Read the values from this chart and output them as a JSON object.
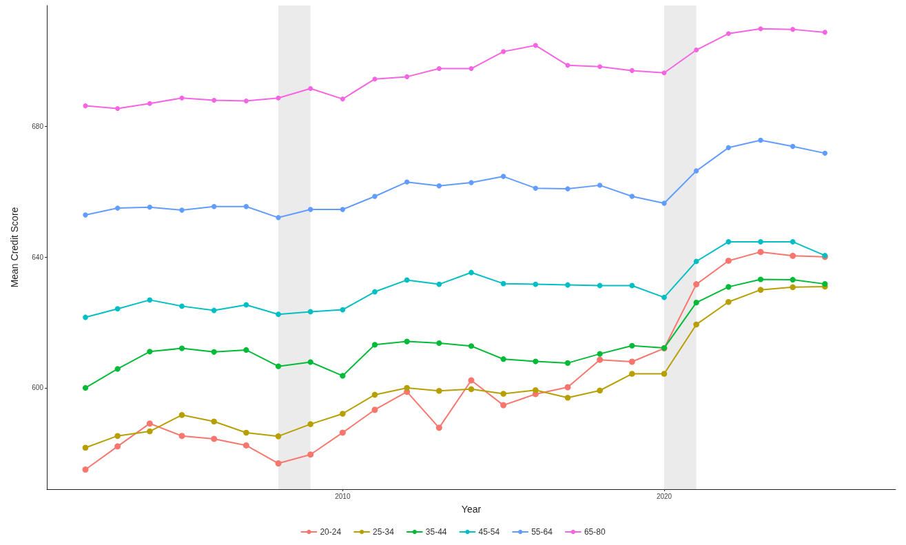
{
  "chart_data": {
    "type": "line",
    "xlabel": "Year",
    "ylabel": "Mean Credit Score",
    "x": [
      2002,
      2003,
      2004,
      2005,
      2006,
      2007,
      2008,
      2009,
      2010,
      2011,
      2012,
      2013,
      2014,
      2015,
      2016,
      2017,
      2018,
      2019,
      2020,
      2021,
      2022,
      2023,
      2024,
      2025
    ],
    "series": [
      {
        "name": "20-24",
        "color": "#f8766d",
        "values": [
          575.0,
          582.1,
          589.1,
          585.3,
          584.4,
          582.4,
          576.9,
          579.6,
          586.3,
          593.3,
          598.8,
          587.8,
          602.3,
          594.7,
          598.1,
          600.2,
          608.6,
          608.0,
          612.1,
          631.7,
          638.9,
          641.6,
          640.4,
          640.1
        ]
      },
      {
        "name": "25-34",
        "color": "#b79f00",
        "values": [
          581.7,
          585.3,
          586.7,
          591.7,
          589.7,
          586.3,
          585.2,
          588.9,
          592.1,
          597.9,
          600.0,
          599.1,
          599.6,
          598.2,
          599.3,
          597.0,
          599.2,
          604.3,
          604.3,
          619.4,
          626.3,
          630.0,
          630.8,
          631.0
        ]
      },
      {
        "name": "35-44",
        "color": "#00ba38",
        "values": [
          600.0,
          605.8,
          611.1,
          612.1,
          611.0,
          611.6,
          606.6,
          607.9,
          603.7,
          613.2,
          614.2,
          613.7,
          612.8,
          608.8,
          608.1,
          607.6,
          610.4,
          612.9,
          612.2,
          626.1,
          630.9,
          633.2,
          633.1,
          631.8
        ]
      },
      {
        "name": "45-54",
        "color": "#00bfc4",
        "values": [
          621.6,
          624.2,
          626.9,
          625.0,
          623.7,
          625.4,
          622.5,
          623.3,
          623.9,
          629.4,
          633.0,
          631.7,
          635.3,
          631.9,
          631.7,
          631.5,
          631.3,
          631.3,
          627.7,
          638.7,
          644.7,
          644.7,
          644.7,
          640.5
        ]
      },
      {
        "name": "55-64",
        "color": "#619cff",
        "values": [
          652.9,
          655.0,
          655.3,
          654.4,
          655.5,
          655.5,
          652.1,
          654.6,
          654.6,
          658.6,
          663.0,
          661.8,
          662.8,
          664.7,
          661.1,
          660.9,
          662.0,
          658.6,
          656.5,
          666.4,
          673.5,
          675.8,
          673.9,
          671.8
        ]
      },
      {
        "name": "65-80",
        "color": "#f564e3",
        "values": [
          686.3,
          685.5,
          687.0,
          688.7,
          688.0,
          687.8,
          688.7,
          691.6,
          688.4,
          694.5,
          695.2,
          697.7,
          697.7,
          702.9,
          704.8,
          698.7,
          698.3,
          697.1,
          696.4,
          703.4,
          708.4,
          709.9,
          709.7,
          708.8
        ]
      }
    ],
    "xlim": [
      2000.8,
      2027.2
    ],
    "xticks": [
      2010,
      2020
    ],
    "ylim": [
      569,
      717
    ],
    "yticks": [
      600,
      640,
      680
    ],
    "bands": [
      {
        "axis": "x",
        "from": 2008,
        "to": 2009,
        "color": "#ebebeb"
      },
      {
        "axis": "x",
        "from": 2020,
        "to": 2021,
        "color": "#ebebeb"
      }
    ],
    "grid": false,
    "legend": "bottom",
    "marker": "circle",
    "line_style": "solid"
  }
}
